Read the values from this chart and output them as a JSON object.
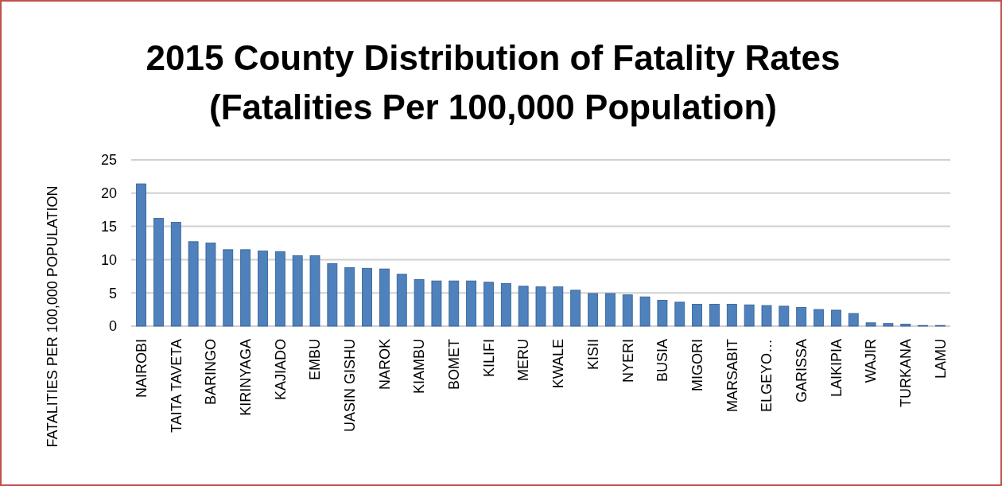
{
  "chart_data": {
    "type": "bar",
    "title": "2015 County Distribution of Fatality Rates",
    "subtitle": "(Fatalities Per 100,000 Population)",
    "ylabel": "FATALITIES PER 100,000 POPULATION",
    "categories": [
      "NAIROBI",
      null,
      "TAITA TAVETA",
      null,
      "BARINGO",
      null,
      "KIRINYAGA",
      null,
      "KAJIADO",
      null,
      "EMBU",
      null,
      "UASIN GISHU",
      null,
      "NAROK",
      null,
      "KIAMBU",
      null,
      "BOMET",
      null,
      "KILIFI",
      null,
      "MERU",
      null,
      "KWALE",
      null,
      "KISII",
      null,
      "NYERI",
      null,
      "BUSIA",
      null,
      "MIGORI",
      null,
      "MARSABIT",
      null,
      "ELGEYO…",
      null,
      "GARISSA",
      null,
      "LAIKIPIA",
      null,
      "WAJIR",
      null,
      "TURKANA",
      null,
      "LAMU"
    ],
    "values": [
      21.4,
      16.2,
      15.6,
      12.7,
      12.5,
      11.5,
      11.5,
      11.3,
      11.2,
      10.6,
      10.6,
      9.4,
      8.8,
      8.7,
      8.6,
      7.8,
      7.0,
      6.8,
      6.8,
      6.8,
      6.6,
      6.4,
      6.0,
      5.9,
      5.9,
      5.4,
      4.9,
      4.9,
      4.7,
      4.4,
      3.9,
      3.6,
      3.3,
      3.3,
      3.3,
      3.2,
      3.1,
      3.0,
      2.8,
      2.5,
      2.4,
      1.9,
      0.5,
      0.4,
      0.3,
      0.1,
      0.1
    ],
    "color": "#4f81bd",
    "ylim": [
      0,
      25
    ],
    "yticks": [
      0,
      5,
      10,
      15,
      20,
      25
    ],
    "grid": "y"
  }
}
